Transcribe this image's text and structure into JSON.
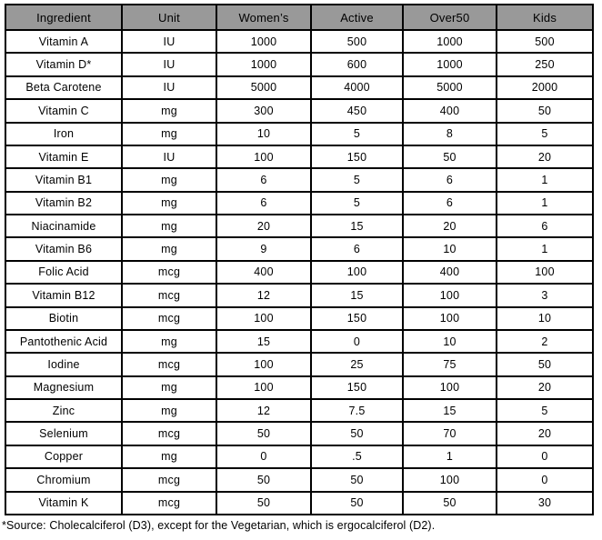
{
  "table": {
    "headers": [
      "Ingredient",
      "Unit",
      "Women’s",
      "Active",
      "Over50",
      "Kids"
    ],
    "rows": [
      [
        "Vitamin A",
        "IU",
        "1000",
        "500",
        "1000",
        "500"
      ],
      [
        "Vitamin D*",
        "IU",
        "1000",
        "600",
        "1000",
        "250"
      ],
      [
        "Beta Carotene",
        "IU",
        "5000",
        "4000",
        "5000",
        "2000"
      ],
      [
        "Vitamin C",
        "mg",
        "300",
        "450",
        "400",
        "50"
      ],
      [
        "Iron",
        "mg",
        "10",
        "5",
        "8",
        "5"
      ],
      [
        "Vitamin E",
        "IU",
        "100",
        "150",
        "50",
        "20"
      ],
      [
        "Vitamin B1",
        "mg",
        "6",
        "5",
        "6",
        "1"
      ],
      [
        "Vitamin B2",
        "mg",
        "6",
        "5",
        "6",
        "1"
      ],
      [
        "Niacinamide",
        "mg",
        "20",
        "15",
        "20",
        "6"
      ],
      [
        "Vitamin B6",
        "mg",
        "9",
        "6",
        "10",
        "1"
      ],
      [
        "Folic Acid",
        "mcg",
        "400",
        "100",
        "400",
        "100"
      ],
      [
        "Vitamin B12",
        "mcg",
        "12",
        "15",
        "100",
        "3"
      ],
      [
        "Biotin",
        "mcg",
        "100",
        "150",
        "100",
        "10"
      ],
      [
        "Pantothenic Acid",
        "mg",
        "15",
        "0",
        "10",
        "2"
      ],
      [
        "Iodine",
        "mcg",
        "100",
        "25",
        "75",
        "50"
      ],
      [
        "Magnesium",
        "mg",
        "100",
        "150",
        "100",
        "20"
      ],
      [
        "Zinc",
        "mg",
        "12",
        "7.5",
        "15",
        "5"
      ],
      [
        "Selenium",
        "mcg",
        "50",
        "50",
        "70",
        "20"
      ],
      [
        "Copper",
        "mg",
        "0",
        ".5",
        "1",
        "0"
      ],
      [
        "Chromium",
        "mcg",
        "50",
        "50",
        "100",
        "0"
      ],
      [
        "Vitamin K",
        "mcg",
        "50",
        "50",
        "50",
        "30"
      ]
    ]
  },
  "footnote": "*Source: Cholecalciferol (D3), except for the Vegetarian, which is ergocalciferol (D2).",
  "colors": {
    "header_bg": "#999999",
    "border": "#000000",
    "text": "#000000",
    "cell_bg": "#ffffff"
  }
}
